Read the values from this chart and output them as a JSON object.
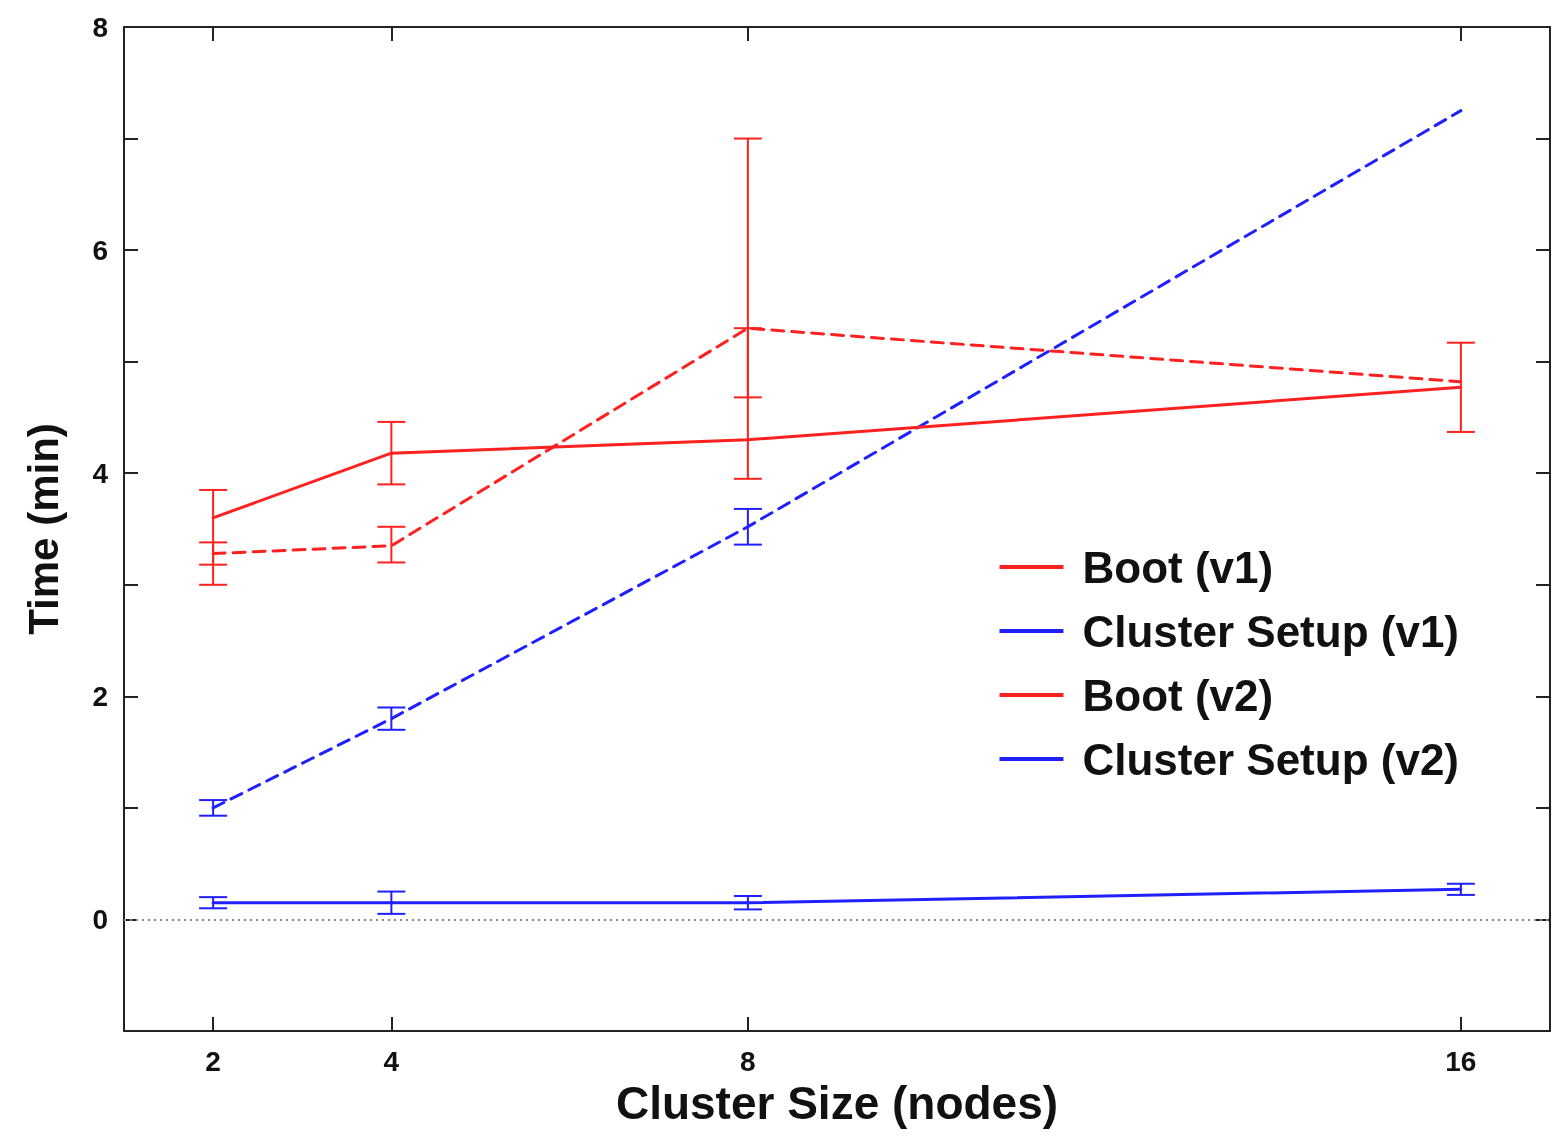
{
  "chart_data": {
    "type": "line",
    "xlabel": "Cluster Size (nodes)",
    "ylabel": "Time (min)",
    "x": [
      2,
      4,
      8,
      16
    ],
    "series": [
      {
        "name": "Boot (v1)",
        "color": "#ff2020",
        "line_style": "dashed",
        "values": [
          3.28,
          3.35,
          5.3,
          4.82
        ],
        "errors": [
          0.1,
          [
            3.2,
            3.52
          ],
          [
            4.68,
            5.3
          ],
          null
        ]
      },
      {
        "name": "Cluster Setup (v1)",
        "color": "#2020ff",
        "line_style": "dashed",
        "values": [
          1.0,
          1.8,
          3.52,
          7.25
        ],
        "errors": [
          0.07,
          0.1,
          0.16,
          null
        ]
      },
      {
        "name": "Boot (v2)",
        "color": "#ff2020",
        "line_style": "solid",
        "values": [
          3.6,
          4.18,
          4.3,
          4.77
        ],
        "errors": [
          [
            3.0,
            3.85
          ],
          0.28,
          [
            3.95,
            7.0
          ],
          0.4
        ]
      },
      {
        "name": "Cluster Setup (v2)",
        "color": "#2020ff",
        "line_style": "solid",
        "values": [
          0.15,
          0.15,
          0.15,
          0.27
        ],
        "errors": [
          0.05,
          0.1,
          0.06,
          0.05
        ]
      }
    ],
    "xlim": [
      1,
      17
    ],
    "xticks": [
      2,
      4,
      8,
      16
    ],
    "ylim": [
      -1,
      8
    ],
    "yticks": [
      {
        "value": -1,
        "label": null
      },
      0,
      {
        "value": 1,
        "label": null
      },
      2,
      {
        "value": 3,
        "label": null
      },
      4,
      {
        "value": 5,
        "label": null
      },
      6,
      {
        "value": 7,
        "label": null
      },
      8
    ],
    "ref_lines": [
      {
        "axis": "y",
        "value": 0,
        "color": "#888888",
        "line_style": "dotted"
      }
    ],
    "marker": "none",
    "grid": false,
    "legend": "right"
  }
}
